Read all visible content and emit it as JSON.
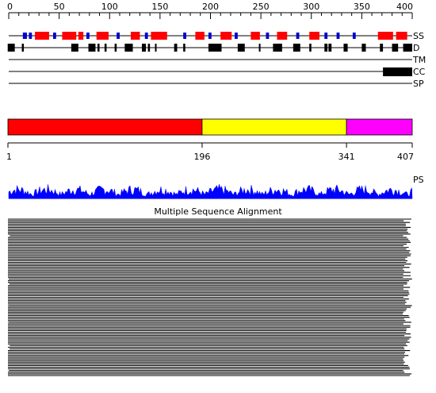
{
  "ruler": {
    "min": 0,
    "max": 400,
    "ticks": [
      "0",
      "50",
      "100",
      "150",
      "200",
      "250",
      "300",
      "350",
      "400"
    ]
  },
  "tracks": {
    "ss": {
      "label": "SS",
      "helix_color": "#ff0000",
      "strand_color": "#0000cc",
      "helices": [
        [
          26,
          40
        ],
        [
          53,
          67
        ],
        [
          69,
          74
        ],
        [
          87,
          99
        ],
        [
          121,
          130
        ],
        [
          141,
          157
        ],
        [
          185,
          194
        ],
        [
          210,
          221
        ],
        [
          240,
          249
        ],
        [
          266,
          276
        ],
        [
          298,
          308
        ],
        [
          366,
          381
        ],
        [
          384,
          395
        ]
      ],
      "strands": [
        [
          14,
          18
        ],
        [
          20,
          23
        ],
        [
          44,
          47
        ],
        [
          77,
          80
        ],
        [
          107,
          110
        ],
        [
          135,
          138
        ],
        [
          173,
          176
        ],
        [
          198,
          201
        ],
        [
          224,
          227
        ],
        [
          255,
          258
        ],
        [
          285,
          288
        ],
        [
          313,
          316
        ],
        [
          325,
          328
        ],
        [
          341,
          344
        ]
      ]
    },
    "disorder": {
      "label": "D",
      "color": "#000000",
      "regions": [
        [
          -1,
          6
        ],
        [
          13,
          15
        ],
        [
          63,
          66
        ],
        [
          62,
          69
        ],
        [
          79,
          86
        ],
        [
          88,
          90
        ],
        [
          95,
          97
        ],
        [
          105,
          107
        ],
        [
          115,
          123
        ],
        [
          132,
          136
        ],
        [
          138,
          140
        ],
        [
          145,
          146
        ],
        [
          164,
          167
        ],
        [
          173,
          175
        ],
        [
          198,
          211
        ],
        [
          227,
          234
        ],
        [
          248,
          249
        ],
        [
          262,
          271
        ],
        [
          282,
          289
        ],
        [
          298,
          300
        ],
        [
          313,
          316
        ],
        [
          317,
          320
        ],
        [
          332,
          336
        ],
        [
          350,
          354
        ],
        [
          368,
          371
        ],
        [
          380,
          386
        ],
        [
          391,
          400
        ],
        [
          394,
          398
        ]
      ]
    },
    "tm": {
      "label": "TM",
      "regions": []
    },
    "cc": {
      "label": "CC",
      "color": "#000000",
      "regions": [
        [
          371,
          400
        ]
      ]
    },
    "sp": {
      "label": "SP",
      "regions": []
    }
  },
  "domains": {
    "length": 407,
    "segments": [
      {
        "start": 1,
        "end": 196,
        "color": "#ff0000"
      },
      {
        "start": 196,
        "end": 341,
        "color": "#ffff00"
      },
      {
        "start": 341,
        "end": 407,
        "color": "#ff00ff"
      }
    ],
    "tick_labels": [
      "1",
      "196",
      "341",
      "407"
    ]
  },
  "ps": {
    "label": "PS",
    "color": "#0000ff"
  },
  "msa": {
    "title": "Multiple Sequence Alignment",
    "row_count": 95
  }
}
